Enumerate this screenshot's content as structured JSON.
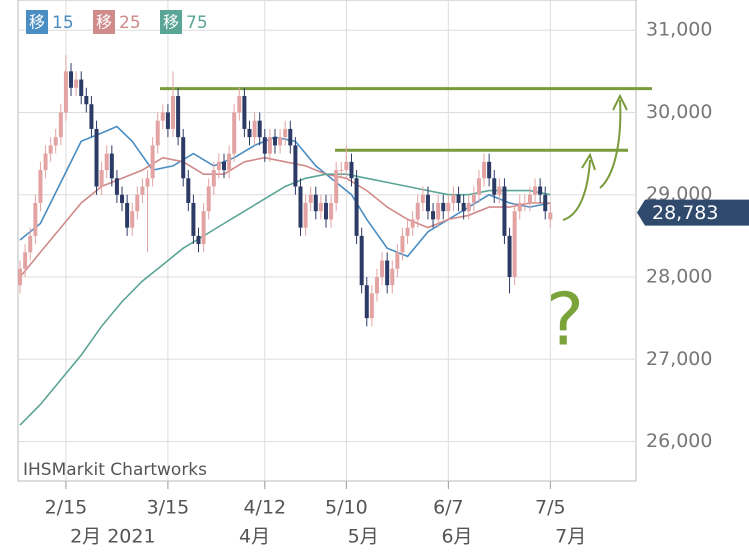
{
  "chart_data": {
    "type": "candlestick",
    "x": [
      0,
      1,
      2,
      3,
      4,
      5,
      6,
      7,
      8,
      9,
      10,
      11,
      12,
      13,
      14,
      15,
      16,
      17,
      18,
      19,
      20,
      21,
      22,
      23,
      24,
      25,
      26,
      27,
      28,
      29,
      30,
      31,
      32,
      33,
      34,
      35,
      36,
      37,
      38,
      39,
      40,
      41,
      42,
      43,
      44,
      45,
      46,
      47,
      48,
      49,
      50,
      51,
      52,
      53,
      54,
      55,
      56,
      57,
      58,
      59,
      60,
      61,
      62,
      63,
      64,
      65,
      66,
      67,
      68,
      69,
      70,
      71,
      72,
      73,
      74,
      75,
      76,
      77,
      78,
      79,
      80,
      81,
      82,
      83,
      84,
      85,
      86,
      87,
      88,
      89,
      90,
      91,
      92,
      93,
      94,
      95,
      96,
      97,
      98,
      99,
      100,
      101,
      102,
      103,
      104
    ],
    "open": [
      27900,
      28100,
      28300,
      28500,
      28900,
      29300,
      29500,
      29600,
      29700,
      30000,
      30500,
      30300,
      30400,
      30200,
      30100,
      29800,
      29100,
      29300,
      29500,
      29200,
      29000,
      28900,
      28600,
      28800,
      29000,
      29100,
      29200,
      29600,
      29900,
      30000,
      29800,
      30200,
      29700,
      29200,
      28900,
      28500,
      28400,
      28800,
      29100,
      29300,
      29400,
      29300,
      29500,
      30000,
      30200,
      29800,
      29700,
      29900,
      29700,
      29500,
      29700,
      29600,
      29700,
      29800,
      29600,
      29100,
      28600,
      28900,
      29000,
      28800,
      28900,
      28700,
      28900,
      29300,
      29300,
      29400,
      29200,
      28500,
      27900,
      27500,
      27800,
      28000,
      28200,
      27900,
      28100,
      28300,
      28500,
      28600,
      28700,
      28900,
      29000,
      28800,
      28700,
      28900,
      28800,
      28900,
      29000,
      28900,
      28800,
      28900,
      29000,
      29200,
      29400,
      29200,
      29000,
      29100,
      28500,
      28000,
      28800,
      28900,
      28900,
      29000,
      29100,
      29000,
      28700
    ],
    "high": [
      28200,
      28400,
      28600,
      29000,
      29400,
      29600,
      29700,
      29800,
      30100,
      30700,
      30600,
      30500,
      30500,
      30300,
      30200,
      29900,
      29400,
      29600,
      29600,
      29300,
      29100,
      29000,
      28900,
      29100,
      29200,
      29300,
      29700,
      30000,
      30100,
      30100,
      30500,
      30300,
      29800,
      29300,
      29000,
      28600,
      28900,
      29200,
      29400,
      29500,
      29500,
      29600,
      30100,
      30300,
      30300,
      29900,
      30000,
      30000,
      29800,
      29800,
      29800,
      29800,
      29900,
      29900,
      29700,
      29200,
      29000,
      29100,
      29100,
      29000,
      29000,
      29000,
      29400,
      29400,
      29600,
      29500,
      29300,
      28600,
      28000,
      27900,
      28100,
      28300,
      28300,
      28200,
      28400,
      28600,
      28700,
      28800,
      29000,
      29100,
      29100,
      28900,
      29000,
      29000,
      29000,
      29100,
      29100,
      29000,
      29000,
      29100,
      29300,
      29500,
      29500,
      29300,
      29200,
      29200,
      28600,
      28900,
      29000,
      29000,
      29100,
      29200,
      29200,
      29100,
      28900
    ],
    "low": [
      27800,
      28000,
      28200,
      28400,
      28800,
      29200,
      29400,
      29500,
      29600,
      29900,
      30200,
      30200,
      30100,
      30000,
      29700,
      29000,
      29000,
      29200,
      29100,
      28900,
      28800,
      28500,
      28500,
      28700,
      28900,
      28300,
      29100,
      29500,
      29800,
      29700,
      29700,
      29600,
      29100,
      28800,
      28400,
      28300,
      28300,
      28700,
      29000,
      29200,
      29200,
      29200,
      29400,
      29900,
      29700,
      29600,
      29600,
      29600,
      29400,
      29400,
      29500,
      29500,
      29600,
      29500,
      29000,
      28500,
      28500,
      28800,
      28700,
      28700,
      28600,
      28600,
      28800,
      29200,
      29200,
      29100,
      28400,
      27800,
      27400,
      27400,
      27700,
      27900,
      27800,
      27800,
      28000,
      28200,
      28400,
      28500,
      28600,
      28800,
      28700,
      28600,
      28600,
      28700,
      28700,
      28800,
      28800,
      28700,
      28700,
      28800,
      28900,
      29100,
      29100,
      28900,
      28900,
      28400,
      27800,
      27900,
      28700,
      28800,
      28800,
      28900,
      28900,
      28700,
      28600
    ],
    "close": [
      28100,
      28300,
      28500,
      28900,
      29300,
      29500,
      29600,
      29700,
      30000,
      30500,
      30300,
      30400,
      30200,
      30100,
      29800,
      29100,
      29300,
      29500,
      29200,
      29000,
      28900,
      28600,
      28800,
      29000,
      29100,
      29200,
      29600,
      29900,
      30000,
      29800,
      30200,
      29700,
      29200,
      28900,
      28500,
      28400,
      28800,
      29100,
      29300,
      29400,
      29300,
      29500,
      30000,
      30200,
      29800,
      29700,
      29900,
      29700,
      29500,
      29700,
      29600,
      29700,
      29800,
      29600,
      29100,
      28600,
      28900,
      29000,
      28800,
      28900,
      28700,
      28900,
      29300,
      29300,
      29400,
      29200,
      28500,
      27900,
      27500,
      27800,
      28000,
      28200,
      27900,
      28100,
      28300,
      28500,
      28600,
      28700,
      28900,
      29000,
      28800,
      28700,
      28900,
      28800,
      28900,
      29000,
      28900,
      28800,
      28900,
      29000,
      29200,
      29400,
      29200,
      29000,
      29100,
      28500,
      28000,
      28800,
      28900,
      28900,
      29000,
      29100,
      29000,
      28800,
      28783
    ],
    "up_color": "#e3a3a3",
    "down_color": "#2c3a66",
    "legend_marker": "移",
    "series": [
      {
        "name": "15",
        "color": "#4a8dc2",
        "x": [
          0,
          4,
          8,
          12,
          16,
          19,
          22,
          26,
          30,
          34,
          38,
          42,
          46,
          50,
          54,
          58,
          62,
          65,
          68,
          72,
          76,
          80,
          84,
          88,
          92,
          96,
          100,
          104
        ],
        "values": [
          28450,
          28650,
          29150,
          29650,
          29750,
          29830,
          29650,
          29300,
          29350,
          29500,
          29350,
          29450,
          29600,
          29700,
          29650,
          29350,
          29150,
          29000,
          28700,
          28350,
          28250,
          28550,
          28700,
          28850,
          29000,
          28900,
          28850,
          28900
        ]
      },
      {
        "name": "25",
        "color": "#d08a8a",
        "x": [
          0,
          4,
          8,
          12,
          16,
          20,
          24,
          28,
          32,
          36,
          40,
          44,
          48,
          52,
          56,
          60,
          64,
          68,
          72,
          76,
          80,
          84,
          88,
          92,
          96,
          100,
          104
        ],
        "values": [
          28000,
          28300,
          28600,
          28900,
          29100,
          29200,
          29300,
          29450,
          29400,
          29250,
          29250,
          29400,
          29450,
          29400,
          29350,
          29250,
          29200,
          29050,
          28850,
          28700,
          28600,
          28700,
          28750,
          28850,
          28850,
          28900,
          28900
        ]
      },
      {
        "name": "75",
        "color": "#5aa596",
        "x": [
          0,
          4,
          8,
          12,
          16,
          20,
          24,
          28,
          32,
          36,
          40,
          44,
          48,
          52,
          56,
          60,
          64,
          68,
          72,
          76,
          80,
          84,
          88,
          92,
          96,
          100,
          104
        ],
        "values": [
          26200,
          26450,
          26750,
          27050,
          27400,
          27700,
          27950,
          28150,
          28350,
          28500,
          28650,
          28800,
          28950,
          29100,
          29200,
          29250,
          29250,
          29200,
          29150,
          29100,
          29050,
          29000,
          29000,
          29050,
          29050,
          29050,
          29000
        ]
      }
    ],
    "xlim": [
      -0.4,
      120.8
    ],
    "xticks": [
      {
        "value": 9,
        "label": "2/15"
      },
      {
        "value": 29,
        "label": "3/15"
      },
      {
        "value": 48,
        "label": "4/12"
      },
      {
        "value": 64,
        "label": "5/10"
      },
      {
        "value": 84,
        "label": "6/7"
      },
      {
        "value": 104,
        "label": "7/5"
      }
    ],
    "month_labels": [
      {
        "value": 18.2,
        "label": "2月 2021"
      },
      {
        "value": 46,
        "label": "4月"
      },
      {
        "value": 67.3,
        "label": "5月"
      },
      {
        "value": 85.7,
        "label": "6月"
      },
      {
        "value": 108,
        "label": "7月"
      }
    ],
    "ylim": [
      25520,
      31270
    ],
    "yticks": [
      {
        "value": 26000,
        "label": "26,000"
      },
      {
        "value": 27000,
        "label": "27,000"
      },
      {
        "value": 28000,
        "label": "28,000"
      },
      {
        "value": 29000,
        "label": "29,000"
      },
      {
        "value": 30000,
        "label": "30,000"
      },
      {
        "value": 31000,
        "label": "31,000"
      }
    ],
    "grid": true,
    "last_price": {
      "value": 28783,
      "label": "28,783"
    },
    "resistance_lines": [
      30290,
      29540
    ],
    "resistance_color": "#7a9b3c",
    "annotation": "?",
    "watermark": "IHSMarkit Chartworks"
  }
}
